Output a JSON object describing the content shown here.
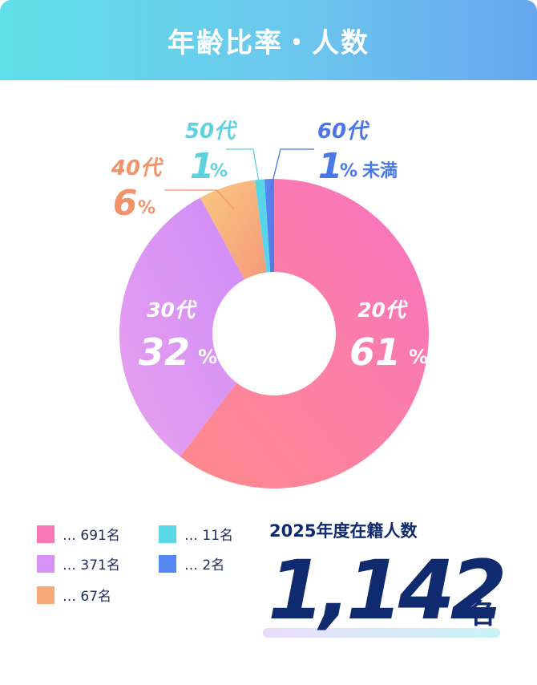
{
  "header": {
    "title": "年齢比率・人数"
  },
  "chart_data": {
    "type": "pie",
    "categories": [
      "20代",
      "30代",
      "40代",
      "50代",
      "60代"
    ],
    "values": [
      61,
      32,
      6,
      1,
      1
    ],
    "value_labels": [
      "61",
      "32",
      "6",
      "1",
      "1"
    ],
    "unit": "%",
    "extra_suffix": [
      "",
      "",
      "",
      "",
      "未満"
    ],
    "counts": [
      691,
      371,
      67,
      11,
      2
    ],
    "count_unit": "名",
    "colors": [
      "#f977b4",
      "#d893f6",
      "#f7a878",
      "#5ad8e6",
      "#5588f2"
    ],
    "label_colors": [
      "#ffffff",
      "#ffffff",
      "#f4926a",
      "#5fd2df",
      "#4a78e6"
    ]
  },
  "legend": {
    "items": [
      {
        "text": "… 691名",
        "color": "#f977b4"
      },
      {
        "text": "… 371名",
        "color": "#d893f6"
      },
      {
        "text": "…   67名",
        "color": "#f7a878"
      },
      {
        "text": "… 11名",
        "color": "#5ad8e6"
      },
      {
        "text": "…    2名",
        "color": "#5588f2"
      }
    ]
  },
  "total": {
    "label": "2025年度在籍人数",
    "value": "1,142",
    "unit": "名"
  }
}
